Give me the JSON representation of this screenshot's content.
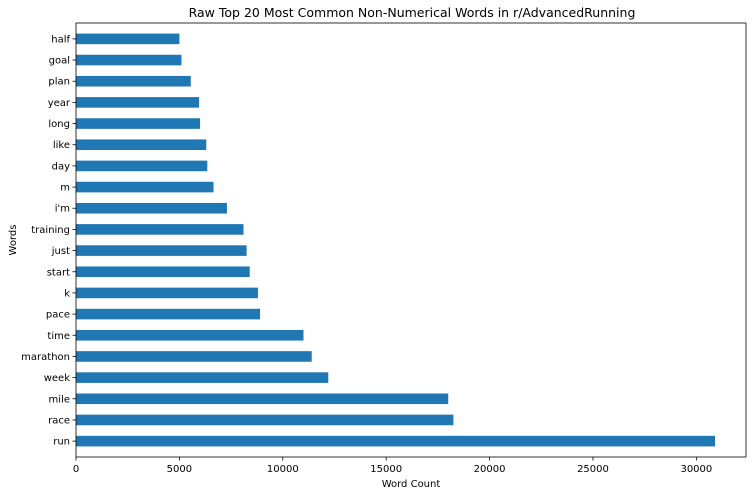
{
  "chart_data": {
    "type": "bar",
    "orientation": "horizontal",
    "title": "Raw Top 20 Most Common Non-Numerical Words in r/AdvancedRunning",
    "xlabel": "Word Count",
    "ylabel": "Words",
    "categories": [
      "run",
      "race",
      "mile",
      "week",
      "marathon",
      "time",
      "pace",
      "k",
      "start",
      "just",
      "training",
      "i'm",
      "m",
      "day",
      "like",
      "long",
      "year",
      "plan",
      "goal",
      "half"
    ],
    "values": [
      30900,
      18250,
      18000,
      12200,
      11400,
      11000,
      8900,
      8800,
      8400,
      8250,
      8100,
      7300,
      6650,
      6350,
      6300,
      6000,
      5950,
      5550,
      5100,
      5000
    ],
    "xlim": [
      0,
      32400
    ],
    "xticks": [
      0,
      5000,
      10000,
      15000,
      20000,
      25000,
      30000
    ],
    "bar_color": "#1f77b4",
    "grid": false,
    "legend": "none"
  }
}
